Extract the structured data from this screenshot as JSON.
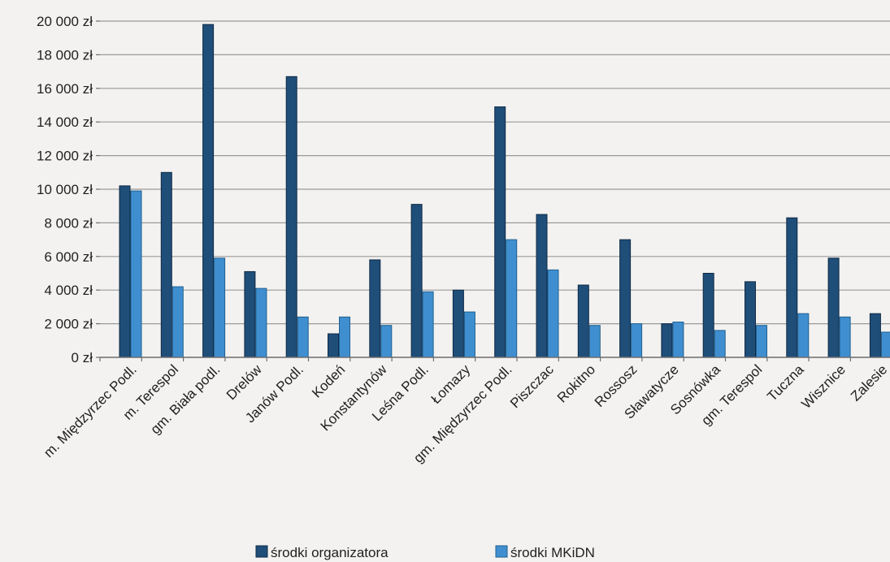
{
  "chart_data": {
    "type": "bar",
    "title": "",
    "xlabel": "",
    "ylabel": "",
    "ylim": [
      0,
      20000
    ],
    "yticks": [
      0,
      2000,
      4000,
      6000,
      8000,
      10000,
      12000,
      14000,
      16000,
      18000,
      20000
    ],
    "ytick_labels": [
      "0 zł",
      "2 000 zł",
      "4 000 zł",
      "6 000 zł",
      "8 000 zł",
      "10 000 zł",
      "12 000 zł",
      "14 000 zł",
      "16 000 zł",
      "18 000 zł",
      "20 000 zł"
    ],
    "grid": true,
    "legend_position": "bottom",
    "categories": [
      "m. Międzyrzec Podl.",
      "m. Terespol",
      "gm. Biała podl.",
      "Drelów",
      "Janów Podl.",
      "Kodeń",
      "Konstantynów",
      "Leśna Podl.",
      "Łomazy",
      "gm. Międzyrzec Podl.",
      "Piszczac",
      "Rokitno",
      "Rossosz",
      "Sławatycze",
      "Sosnówka",
      "gm. Terespol",
      "Tuczna",
      "Wisznice",
      "Zalesie"
    ],
    "series": [
      {
        "name": "środki organizatora",
        "color": "#1f4e79",
        "values": [
          10200,
          11000,
          19800,
          5100,
          16700,
          1400,
          5800,
          9100,
          4000,
          14900,
          8500,
          4300,
          7000,
          2000,
          5000,
          4500,
          8300,
          5900,
          2600
        ]
      },
      {
        "name": "środki MKiDN",
        "color": "#3f8fd0",
        "values": [
          9900,
          4200,
          5900,
          4100,
          2400,
          2400,
          1900,
          3900,
          2700,
          7000,
          5200,
          1900,
          2000,
          2100,
          1600,
          1900,
          2600,
          2400,
          1500
        ]
      }
    ]
  }
}
